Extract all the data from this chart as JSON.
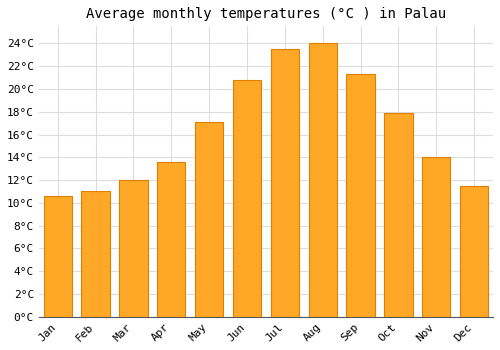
{
  "title": "Average monthly temperatures (°C ) in Palau",
  "months": [
    "Jan",
    "Feb",
    "Mar",
    "Apr",
    "May",
    "Jun",
    "Jul",
    "Aug",
    "Sep",
    "Oct",
    "Nov",
    "Dec"
  ],
  "values": [
    10.6,
    11.0,
    12.0,
    13.6,
    17.1,
    20.8,
    23.5,
    24.0,
    21.3,
    17.9,
    14.0,
    11.5
  ],
  "bar_color": "#FFA726",
  "bar_edge_color": "#E08000",
  "background_color": "#ffffff",
  "grid_color": "#dddddd",
  "ylim": [
    0,
    25.5
  ],
  "ytick_step": 2,
  "title_fontsize": 10,
  "tick_fontsize": 8,
  "font_family": "monospace"
}
